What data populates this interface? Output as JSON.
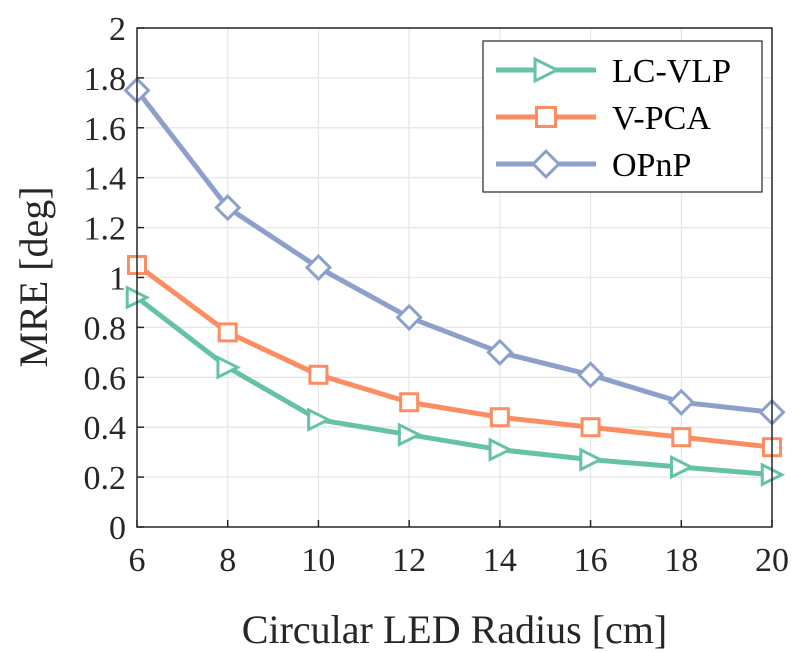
{
  "chart_data": {
    "type": "line",
    "title": "",
    "xlabel": "Circular LED Radius [cm]",
    "ylabel": "MRE [deg]",
    "x": [
      6,
      8,
      10,
      12,
      14,
      16,
      18,
      20
    ],
    "xlim": [
      6,
      20
    ],
    "ylim": [
      0,
      2
    ],
    "xticks": [
      6,
      8,
      10,
      12,
      14,
      16,
      18,
      20
    ],
    "xtick_labels": [
      "6",
      "8",
      "10",
      "12",
      "14",
      "16",
      "18",
      "20"
    ],
    "yticks": [
      0,
      0.2,
      0.4,
      0.6,
      0.8,
      1,
      1.2,
      1.4,
      1.6,
      1.8,
      2
    ],
    "ytick_labels": [
      "0",
      "0.2",
      "0.4",
      "0.6",
      "0.8",
      "1",
      "1.2",
      "1.4",
      "1.6",
      "1.8",
      "2"
    ],
    "grid": true,
    "legend_position": "top-right",
    "series": [
      {
        "name": "LC-VLP",
        "color": "#66c2a5",
        "marker": "triangle-right",
        "values": [
          0.92,
          0.64,
          0.43,
          0.37,
          0.31,
          0.27,
          0.24,
          0.21
        ]
      },
      {
        "name": "V-PCA",
        "color": "#fc8d62",
        "marker": "square",
        "values": [
          1.05,
          0.78,
          0.61,
          0.5,
          0.44,
          0.4,
          0.36,
          0.32
        ]
      },
      {
        "name": "OPnP",
        "color": "#8da0cb",
        "marker": "diamond",
        "values": [
          1.75,
          1.28,
          1.04,
          0.84,
          0.7,
          0.61,
          0.5,
          0.46
        ]
      }
    ]
  }
}
